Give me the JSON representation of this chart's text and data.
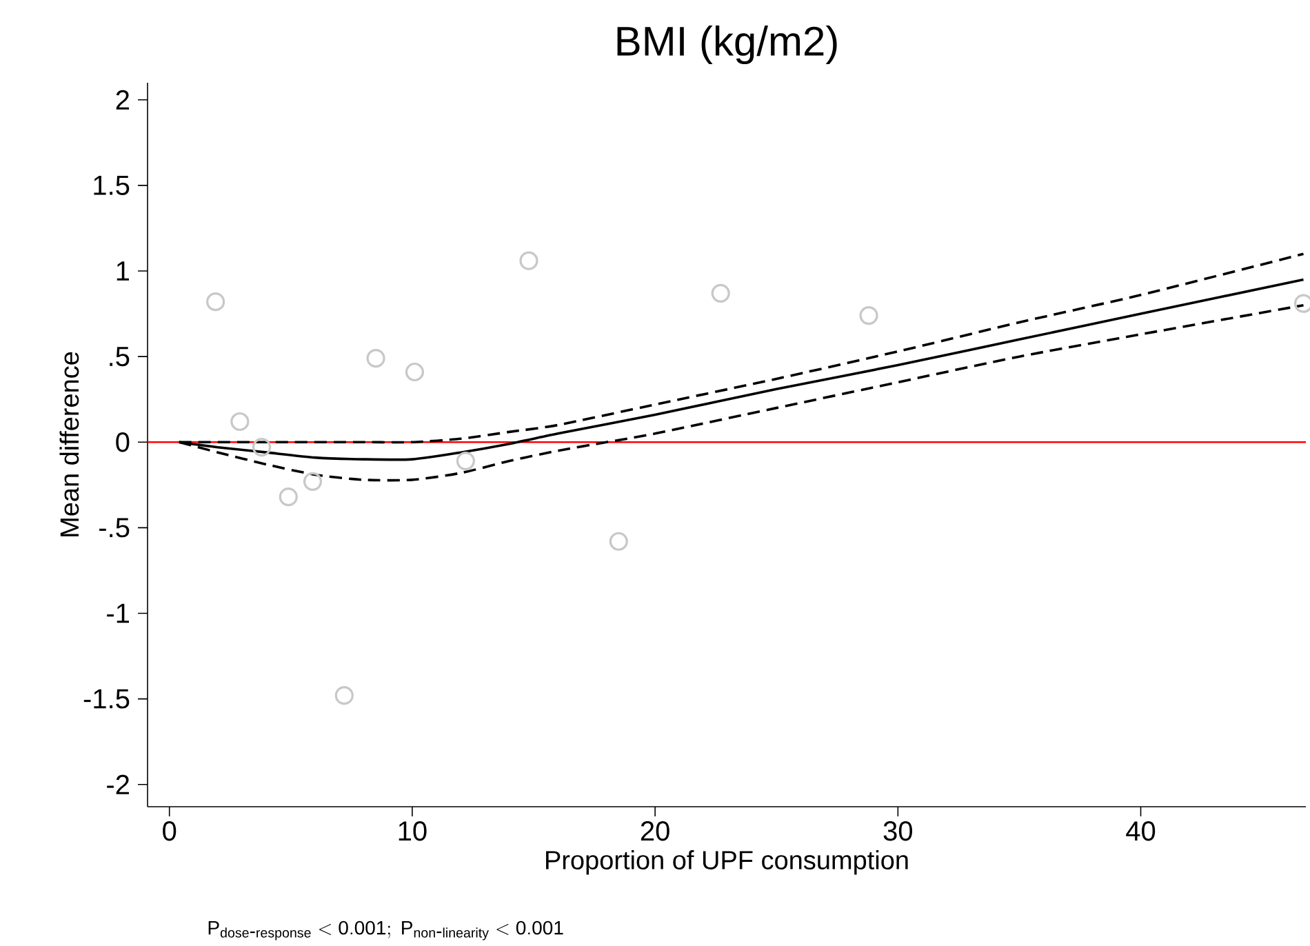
{
  "chart_data": {
    "type": "line",
    "title": "BMI (kg/m2)",
    "xlabel": "Proportion of UPF consumption",
    "ylabel": "Mean difference",
    "annotations": [
      "\\mathrm{P_{dose\\mbox{-}response} < 0.001;\\ P_{non\\mbox{-}linearity} < 0.001}"
    ],
    "xlim": [
      -0.9,
      46.8
    ],
    "xticks": [
      0,
      10,
      20,
      30,
      40
    ],
    "ylim": [
      -2.13,
      2.1
    ],
    "yticks": [
      2,
      1.5,
      1,
      {
        "value": 0.5,
        "label": ".5"
      },
      0,
      {
        "value": -0.5,
        "label": "-.5"
      },
      -1,
      -1.5,
      -2
    ],
    "grid": false,
    "ref_lines": [
      {
        "axis": "y",
        "value": 0,
        "color": "#ff0000"
      }
    ],
    "series": [
      {
        "type": "scatter",
        "marker": "circle",
        "color": "#c8c8c8",
        "x": [
          1.9,
          2.9,
          3.8,
          4.9,
          5.9,
          7.2,
          8.5,
          10.1,
          12.2,
          14.8,
          18.5,
          22.7,
          28.8,
          46.7
        ],
        "values": [
          0.82,
          0.12,
          -0.03,
          -0.32,
          -0.23,
          -1.48,
          0.49,
          0.41,
          -0.11,
          1.06,
          -0.58,
          0.87,
          0.74,
          0.81
        ]
      },
      {
        "line_style": "solid",
        "color": "#000000",
        "x": [
          0.4,
          2,
          4,
          6,
          8,
          10,
          12,
          14,
          16,
          20,
          25,
          30,
          35,
          40,
          46.7
        ],
        "values": [
          0,
          -0.03,
          -0.06,
          -0.09,
          -0.1,
          -0.1,
          -0.06,
          -0.01,
          0.05,
          0.16,
          0.31,
          0.45,
          0.6,
          0.75,
          0.95
        ]
      },
      {
        "line_style": "dashed",
        "color": "#000000",
        "x": [
          0.4,
          4,
          8,
          10,
          12,
          14,
          16,
          20,
          25,
          30,
          35,
          40,
          46.7
        ],
        "values": [
          0,
          0,
          0,
          0,
          0.02,
          0.06,
          0.1,
          0.22,
          0.37,
          0.53,
          0.7,
          0.86,
          1.1
        ]
      },
      {
        "line_style": "dashed",
        "color": "#000000",
        "x": [
          0.4,
          2,
          4,
          6,
          8,
          10,
          12,
          14,
          16,
          18,
          20,
          25,
          30,
          35,
          40,
          46.7
        ],
        "values": [
          0,
          -0.06,
          -0.13,
          -0.19,
          -0.22,
          -0.22,
          -0.18,
          -0.11,
          -0.05,
          0.0,
          0.05,
          0.2,
          0.35,
          0.5,
          0.63,
          0.8
        ]
      }
    ]
  }
}
